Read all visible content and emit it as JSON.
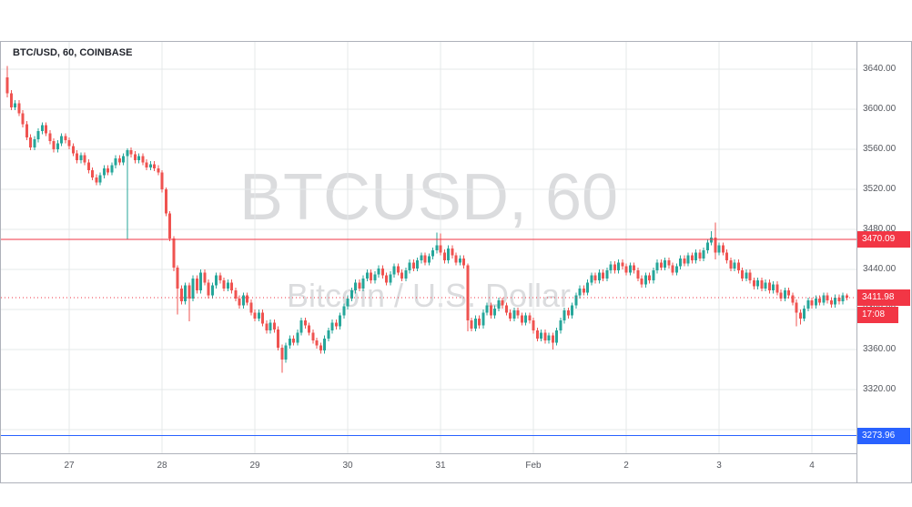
{
  "chart": {
    "title": "BTC/USD, 60, COINBASE",
    "watermark_line1": "BTCUSD, 60",
    "watermark_line2": "Bitcoin / U.S. Dollar",
    "resistance_price": "3470.09",
    "last_price": "3411.98",
    "countdown": "17:08",
    "support_price": "3273.96"
  },
  "chart_data": {
    "type": "candlestick",
    "symbol": "BTCUSD",
    "exchange": "COINBASE",
    "interval_minutes": 60,
    "title": "BTC/USD, 60, COINBASE",
    "price_axis": {
      "visible_range": [
        3256.36,
        3667.27
      ],
      "tick_step": 40,
      "ticks": [
        3640,
        3600,
        3560,
        3520,
        3480,
        3440,
        3400,
        3360,
        3320
      ],
      "grid_only": [
        3280
      ],
      "label_format": "2dp"
    },
    "time_axis": {
      "labels": [
        {
          "text": "27",
          "candle_index": 16
        },
        {
          "text": "28",
          "candle_index": 40
        },
        {
          "text": "29",
          "candle_index": 64
        },
        {
          "text": "30",
          "candle_index": 88
        },
        {
          "text": "31",
          "candle_index": 112
        },
        {
          "text": "Feb",
          "candle_index": 136
        },
        {
          "text": "2",
          "candle_index": 160
        },
        {
          "text": "3",
          "candle_index": 184
        },
        {
          "text": "4",
          "candle_index": 208
        }
      ]
    },
    "levels": [
      {
        "name": "resistance",
        "price": 3470.09,
        "color": "#f23645",
        "line_style": "solid"
      },
      {
        "name": "last-price",
        "price": 3411.98,
        "color": "#f23645",
        "line_style": "dotted"
      },
      {
        "name": "support",
        "price": 3273.96,
        "color": "#2962ff",
        "line_style": "solid"
      }
    ],
    "colors": {
      "up": "#26a69a",
      "down": "#ef5350",
      "grid": "#e6e8ea",
      "frame": "#aeb1ba",
      "axis_text": "#54575e",
      "title_text": "#23262e",
      "badge_text": "#ffffff"
    },
    "candles_ohlc": [
      [
        3632,
        3643,
        3612,
        3616
      ],
      [
        3616,
        3619,
        3599,
        3602
      ],
      [
        3602,
        3609,
        3599,
        3606
      ],
      [
        3606,
        3609,
        3593,
        3596
      ],
      [
        3596,
        3599,
        3582,
        3585
      ],
      [
        3585,
        3588,
        3569,
        3572
      ],
      [
        3572,
        3575,
        3559,
        3562
      ],
      [
        3562,
        3573,
        3559,
        3570
      ],
      [
        3570,
        3581,
        3567,
        3578
      ],
      [
        3578,
        3587,
        3575,
        3584
      ],
      [
        3584,
        3587,
        3573,
        3576
      ],
      [
        3576,
        3579,
        3565,
        3568
      ],
      [
        3568,
        3571,
        3557,
        3560
      ],
      [
        3560,
        3569,
        3557,
        3566
      ],
      [
        3566,
        3576,
        3563,
        3573
      ],
      [
        3573,
        3576,
        3566,
        3569
      ],
      [
        3569,
        3572,
        3560,
        3563
      ],
      [
        3563,
        3566,
        3553,
        3556
      ],
      [
        3556,
        3559,
        3546,
        3549
      ],
      [
        3549,
        3557,
        3546,
        3554
      ],
      [
        3554,
        3557,
        3544,
        3547
      ],
      [
        3547,
        3550,
        3536,
        3539
      ],
      [
        3539,
        3542,
        3529,
        3532
      ],
      [
        3532,
        3535,
        3524,
        3527
      ],
      [
        3527,
        3537,
        3524,
        3534
      ],
      [
        3534,
        3544,
        3531,
        3541
      ],
      [
        3541,
        3544,
        3534,
        3537
      ],
      [
        3537,
        3547,
        3534,
        3544
      ],
      [
        3544,
        3554,
        3541,
        3551
      ],
      [
        3551,
        3554,
        3544,
        3547
      ],
      [
        3547,
        3556,
        3544,
        3553
      ],
      [
        3553,
        3561,
        3470,
        3559
      ],
      [
        3559,
        3562,
        3552,
        3555
      ],
      [
        3555,
        3558,
        3546,
        3549
      ],
      [
        3549,
        3556,
        3546,
        3553
      ],
      [
        3553,
        3556,
        3544,
        3547
      ],
      [
        3547,
        3550,
        3539,
        3542
      ],
      [
        3542,
        3548,
        3539,
        3545
      ],
      [
        3545,
        3548,
        3538,
        3541
      ],
      [
        3541,
        3544,
        3534,
        3537
      ],
      [
        3537,
        3539,
        3517,
        3520
      ],
      [
        3520,
        3522,
        3493,
        3496
      ],
      [
        3496,
        3498,
        3468,
        3471
      ],
      [
        3471,
        3473,
        3438,
        3442
      ],
      [
        3442,
        3444,
        3395,
        3421
      ],
      [
        3421,
        3424,
        3405,
        3408
      ],
      [
        3408,
        3427,
        3405,
        3424
      ],
      [
        3424,
        3427,
        3388,
        3411
      ],
      [
        3411,
        3434,
        3408,
        3431
      ],
      [
        3431,
        3434,
        3416,
        3419
      ],
      [
        3419,
        3440,
        3416,
        3437
      ],
      [
        3437,
        3440,
        3424,
        3427
      ],
      [
        3427,
        3430,
        3411,
        3414
      ],
      [
        3414,
        3427,
        3411,
        3424
      ],
      [
        3424,
        3437,
        3421,
        3434
      ],
      [
        3434,
        3437,
        3426,
        3429
      ],
      [
        3429,
        3432,
        3418,
        3421
      ],
      [
        3421,
        3430,
        3418,
        3427
      ],
      [
        3427,
        3430,
        3416,
        3419
      ],
      [
        3419,
        3422,
        3408,
        3411
      ],
      [
        3411,
        3414,
        3401,
        3404
      ],
      [
        3404,
        3417,
        3401,
        3414
      ],
      [
        3414,
        3417,
        3404,
        3407
      ],
      [
        3407,
        3410,
        3394,
        3397
      ],
      [
        3397,
        3400,
        3388,
        3391
      ],
      [
        3391,
        3400,
        3388,
        3397
      ],
      [
        3397,
        3400,
        3383,
        3386
      ],
      [
        3386,
        3389,
        3376,
        3379
      ],
      [
        3379,
        3390,
        3376,
        3387
      ],
      [
        3387,
        3390,
        3377,
        3380
      ],
      [
        3380,
        3383,
        3359,
        3362
      ],
      [
        3362,
        3365,
        3337,
        3350
      ],
      [
        3350,
        3367,
        3347,
        3364
      ],
      [
        3364,
        3374,
        3361,
        3371
      ],
      [
        3371,
        3374,
        3364,
        3367
      ],
      [
        3367,
        3380,
        3364,
        3377
      ],
      [
        3377,
        3392,
        3374,
        3389
      ],
      [
        3389,
        3392,
        3381,
        3384
      ],
      [
        3384,
        3387,
        3374,
        3377
      ],
      [
        3377,
        3380,
        3366,
        3369
      ],
      [
        3369,
        3372,
        3361,
        3364
      ],
      [
        3364,
        3367,
        3356,
        3359
      ],
      [
        3359,
        3374,
        3356,
        3371
      ],
      [
        3371,
        3382,
        3368,
        3379
      ],
      [
        3379,
        3390,
        3376,
        3387
      ],
      [
        3387,
        3390,
        3380,
        3383
      ],
      [
        3383,
        3397,
        3380,
        3394
      ],
      [
        3394,
        3406,
        3391,
        3403
      ],
      [
        3403,
        3414,
        3400,
        3411
      ],
      [
        3411,
        3422,
        3408,
        3419
      ],
      [
        3419,
        3430,
        3416,
        3427
      ],
      [
        3427,
        3430,
        3418,
        3421
      ],
      [
        3421,
        3434,
        3418,
        3431
      ],
      [
        3431,
        3440,
        3428,
        3437
      ],
      [
        3437,
        3440,
        3426,
        3429
      ],
      [
        3429,
        3438,
        3426,
        3435
      ],
      [
        3435,
        3444,
        3432,
        3441
      ],
      [
        3441,
        3444,
        3431,
        3434
      ],
      [
        3434,
        3437,
        3424,
        3427
      ],
      [
        3427,
        3438,
        3424,
        3435
      ],
      [
        3435,
        3446,
        3432,
        3443
      ],
      [
        3443,
        3446,
        3434,
        3437
      ],
      [
        3437,
        3440,
        3428,
        3431
      ],
      [
        3431,
        3442,
        3428,
        3439
      ],
      [
        3439,
        3450,
        3436,
        3447
      ],
      [
        3447,
        3450,
        3438,
        3441
      ],
      [
        3441,
        3452,
        3438,
        3449
      ],
      [
        3449,
        3457,
        3446,
        3454
      ],
      [
        3454,
        3457,
        3444,
        3447
      ],
      [
        3447,
        3456,
        3444,
        3453
      ],
      [
        3453,
        3462,
        3450,
        3459
      ],
      [
        3459,
        3477,
        3456,
        3464
      ],
      [
        3464,
        3476,
        3454,
        3457
      ],
      [
        3457,
        3460,
        3446,
        3449
      ],
      [
        3449,
        3464,
        3446,
        3461
      ],
      [
        3461,
        3464,
        3451,
        3454
      ],
      [
        3454,
        3457,
        3444,
        3447
      ],
      [
        3447,
        3454,
        3444,
        3451
      ],
      [
        3451,
        3454,
        3441,
        3444
      ],
      [
        3444,
        3446,
        3378,
        3389
      ],
      [
        3389,
        3392,
        3378,
        3381
      ],
      [
        3381,
        3394,
        3378,
        3391
      ],
      [
        3391,
        3394,
        3381,
        3384
      ],
      [
        3384,
        3400,
        3381,
        3397
      ],
      [
        3397,
        3407,
        3394,
        3404
      ],
      [
        3404,
        3407,
        3391,
        3394
      ],
      [
        3394,
        3404,
        3391,
        3401
      ],
      [
        3401,
        3412,
        3398,
        3409
      ],
      [
        3409,
        3412,
        3401,
        3404
      ],
      [
        3404,
        3407,
        3394,
        3397
      ],
      [
        3397,
        3400,
        3388,
        3391
      ],
      [
        3391,
        3402,
        3388,
        3399
      ],
      [
        3399,
        3402,
        3391,
        3394
      ],
      [
        3394,
        3397,
        3384,
        3387
      ],
      [
        3387,
        3397,
        3384,
        3394
      ],
      [
        3394,
        3397,
        3386,
        3389
      ],
      [
        3389,
        3392,
        3376,
        3379
      ],
      [
        3379,
        3382,
        3368,
        3371
      ],
      [
        3371,
        3380,
        3368,
        3377
      ],
      [
        3377,
        3380,
        3366,
        3369
      ],
      [
        3369,
        3377,
        3366,
        3374
      ],
      [
        3374,
        3377,
        3360,
        3367
      ],
      [
        3367,
        3382,
        3364,
        3379
      ],
      [
        3379,
        3392,
        3376,
        3389
      ],
      [
        3389,
        3402,
        3386,
        3399
      ],
      [
        3399,
        3402,
        3391,
        3394
      ],
      [
        3394,
        3407,
        3391,
        3404
      ],
      [
        3404,
        3417,
        3401,
        3414
      ],
      [
        3414,
        3424,
        3411,
        3421
      ],
      [
        3421,
        3424,
        3414,
        3417
      ],
      [
        3417,
        3430,
        3414,
        3427
      ],
      [
        3427,
        3437,
        3424,
        3434
      ],
      [
        3434,
        3437,
        3426,
        3429
      ],
      [
        3429,
        3440,
        3426,
        3437
      ],
      [
        3437,
        3440,
        3428,
        3431
      ],
      [
        3431,
        3442,
        3428,
        3439
      ],
      [
        3439,
        3448,
        3436,
        3445
      ],
      [
        3445,
        3448,
        3436,
        3439
      ],
      [
        3439,
        3450,
        3436,
        3447
      ],
      [
        3447,
        3450,
        3440,
        3443
      ],
      [
        3443,
        3446,
        3434,
        3437
      ],
      [
        3437,
        3447,
        3434,
        3444
      ],
      [
        3444,
        3447,
        3436,
        3439
      ],
      [
        3439,
        3442,
        3428,
        3431
      ],
      [
        3431,
        3434,
        3422,
        3425
      ],
      [
        3425,
        3437,
        3422,
        3434
      ],
      [
        3434,
        3437,
        3426,
        3429
      ],
      [
        3429,
        3442,
        3426,
        3439
      ],
      [
        3439,
        3450,
        3436,
        3447
      ],
      [
        3447,
        3450,
        3439,
        3442
      ],
      [
        3442,
        3452,
        3439,
        3449
      ],
      [
        3449,
        3452,
        3441,
        3444
      ],
      [
        3444,
        3447,
        3434,
        3437
      ],
      [
        3437,
        3446,
        3434,
        3443
      ],
      [
        3443,
        3454,
        3440,
        3451
      ],
      [
        3451,
        3454,
        3443,
        3446
      ],
      [
        3446,
        3457,
        3443,
        3454
      ],
      [
        3454,
        3457,
        3446,
        3449
      ],
      [
        3449,
        3460,
        3446,
        3457
      ],
      [
        3457,
        3460,
        3448,
        3451
      ],
      [
        3451,
        3462,
        3448,
        3459
      ],
      [
        3459,
        3470,
        3456,
        3467
      ],
      [
        3467,
        3478,
        3464,
        3472
      ],
      [
        3472,
        3487,
        3450,
        3457
      ],
      [
        3457,
        3467,
        3454,
        3464
      ],
      [
        3464,
        3467,
        3454,
        3457
      ],
      [
        3457,
        3460,
        3446,
        3449
      ],
      [
        3449,
        3452,
        3438,
        3441
      ],
      [
        3441,
        3450,
        3438,
        3447
      ],
      [
        3447,
        3450,
        3436,
        3439
      ],
      [
        3439,
        3442,
        3428,
        3431
      ],
      [
        3431,
        3440,
        3428,
        3437
      ],
      [
        3437,
        3440,
        3426,
        3429
      ],
      [
        3429,
        3432,
        3420,
        3423
      ],
      [
        3423,
        3432,
        3420,
        3429
      ],
      [
        3429,
        3432,
        3418,
        3421
      ],
      [
        3421,
        3430,
        3418,
        3427
      ],
      [
        3427,
        3430,
        3416,
        3419
      ],
      [
        3419,
        3428,
        3416,
        3425
      ],
      [
        3425,
        3428,
        3414,
        3417
      ],
      [
        3417,
        3420,
        3408,
        3411
      ],
      [
        3411,
        3422,
        3408,
        3419
      ],
      [
        3419,
        3422,
        3411,
        3414
      ],
      [
        3414,
        3417,
        3404,
        3407
      ],
      [
        3407,
        3410,
        3383,
        3397
      ],
      [
        3397,
        3400,
        3385,
        3391
      ],
      [
        3391,
        3404,
        3388,
        3401
      ],
      [
        3401,
        3412,
        3398,
        3409
      ],
      [
        3409,
        3412,
        3401,
        3404
      ],
      [
        3404,
        3414,
        3401,
        3411
      ],
      [
        3411,
        3414,
        3404,
        3407
      ],
      [
        3407,
        3417,
        3404,
        3414
      ],
      [
        3414,
        3417,
        3406,
        3409
      ],
      [
        3409,
        3412,
        3402,
        3405
      ],
      [
        3405,
        3415,
        3402,
        3412
      ],
      [
        3412,
        3415,
        3405,
        3408
      ],
      [
        3408,
        3417,
        3405,
        3414
      ],
      [
        3414,
        3416,
        3409,
        3411.98
      ]
    ]
  }
}
